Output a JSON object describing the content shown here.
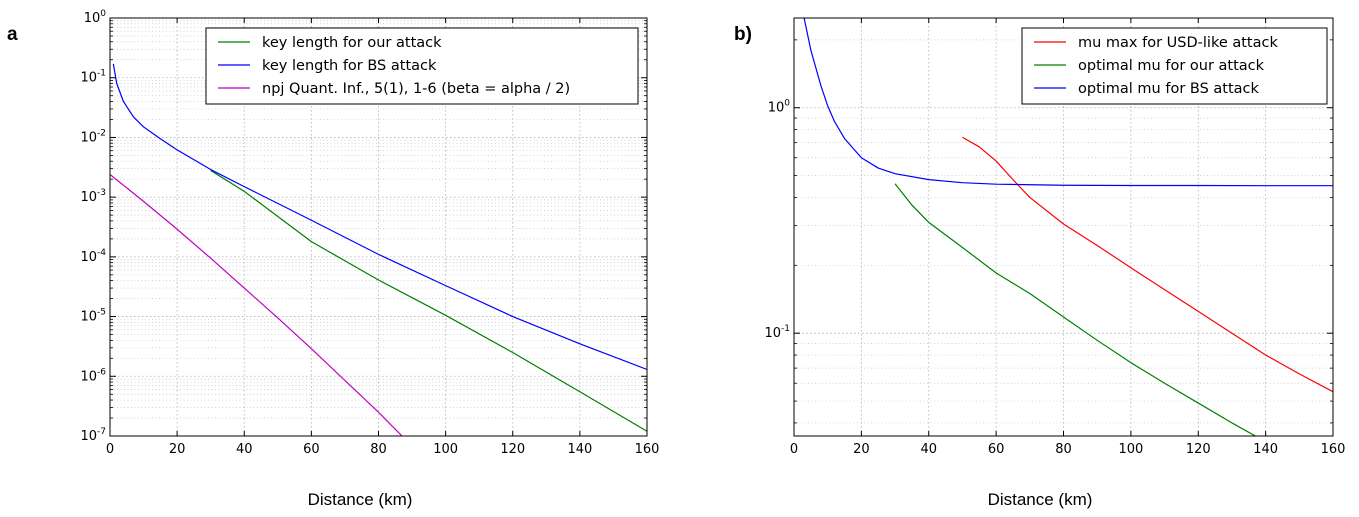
{
  "figure": {
    "panel_a_label": "a",
    "panel_b_label": "b)"
  },
  "chart_data": [
    {
      "type": "line",
      "panel": "a",
      "xlabel": "Distance (km)",
      "ylabel": "",
      "yscale": "log",
      "xlim": [
        0,
        160
      ],
      "ylim": [
        1e-07,
        1
      ],
      "xticks": [
        0,
        20,
        40,
        60,
        80,
        100,
        120,
        140,
        160
      ],
      "yticks": [
        {
          "base": "10",
          "exp": "-7"
        },
        {
          "base": "10",
          "exp": "-6"
        },
        {
          "base": "10",
          "exp": "-5"
        },
        {
          "base": "10",
          "exp": "-4"
        },
        {
          "base": "10",
          "exp": "-3"
        },
        {
          "base": "10",
          "exp": "-2"
        },
        {
          "base": "10",
          "exp": "-1"
        },
        {
          "base": "10",
          "exp": "0"
        }
      ],
      "grid": true,
      "legend_position": "top-right",
      "series": [
        {
          "name": "key length for our attack",
          "color": "#008000",
          "x": [
            30,
            40,
            60,
            80,
            100,
            120,
            140,
            160
          ],
          "y": [
            0.0028,
            0.00125,
            0.00018,
            4.1e-05,
            1.05e-05,
            2.5e-06,
            5.5e-07,
            1.2e-07
          ]
        },
        {
          "name": "key length for BS attack",
          "color": "#0000ff",
          "x": [
            1,
            2,
            4,
            7,
            10,
            15,
            20,
            30,
            40,
            60,
            80,
            100,
            120,
            140,
            160
          ],
          "y": [
            0.17,
            0.08,
            0.04,
            0.022,
            0.015,
            0.0095,
            0.0062,
            0.0029,
            0.0015,
            0.00041,
            0.00011,
            3.3e-05,
            1e-05,
            3.5e-06,
            1.3e-06
          ]
        },
        {
          "name": "npj Quant. Inf., 5(1), 1-6 (beta = alpha / 2)",
          "color": "#bf00bf",
          "x": [
            0,
            10,
            20,
            30,
            40,
            50,
            60,
            70,
            80,
            87
          ],
          "y": [
            0.0024,
            0.00085,
            0.00029,
            9.5e-05,
            3e-05,
            9.5e-06,
            2.9e-06,
            8.5e-07,
            2.5e-07,
            1e-07
          ]
        }
      ]
    },
    {
      "type": "line",
      "panel": "b",
      "xlabel": "Distance (km)",
      "ylabel": "",
      "yscale": "log",
      "xlim": [
        0,
        160
      ],
      "ylim": [
        0.035,
        2.5
      ],
      "xticks": [
        0,
        20,
        40,
        60,
        80,
        100,
        120,
        140,
        160
      ],
      "yticks": [
        {
          "base": "10",
          "exp": "-1",
          "value": 0.1
        },
        {
          "base": "10",
          "exp": "0",
          "value": 1
        }
      ],
      "grid": true,
      "legend_position": "top-right",
      "series": [
        {
          "name": "mu max for USD-like attack",
          "color": "#ff0000",
          "x": [
            50,
            55,
            60,
            65,
            70,
            80,
            90,
            100,
            110,
            120,
            130,
            140,
            150,
            160
          ],
          "y": [
            0.74,
            0.67,
            0.58,
            0.48,
            0.4,
            0.305,
            0.245,
            0.195,
            0.156,
            0.125,
            0.1,
            0.08,
            0.066,
            0.055
          ]
        },
        {
          "name": "optimal mu for our attack",
          "color": "#008000",
          "x": [
            30,
            35,
            40,
            50,
            60,
            70,
            80,
            90,
            100,
            110,
            120,
            130,
            140,
            148
          ],
          "y": [
            0.46,
            0.37,
            0.31,
            0.24,
            0.185,
            0.15,
            0.118,
            0.093,
            0.074,
            0.06,
            0.049,
            0.04,
            0.033,
            0.0285
          ]
        },
        {
          "name": "optimal mu for BS attack",
          "color": "#0000ff",
          "x": [
            3,
            5,
            8,
            10,
            12,
            15,
            20,
            25,
            30,
            40,
            50,
            60,
            80,
            100,
            120,
            140,
            160
          ],
          "y": [
            2.5,
            1.8,
            1.25,
            1.02,
            0.87,
            0.73,
            0.6,
            0.54,
            0.51,
            0.48,
            0.465,
            0.458,
            0.453,
            0.452,
            0.452,
            0.451,
            0.451
          ]
        }
      ]
    }
  ]
}
